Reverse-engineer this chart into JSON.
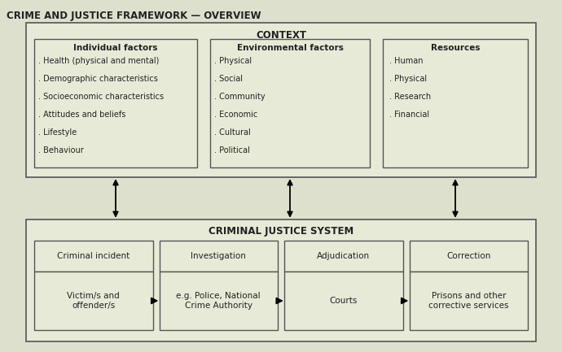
{
  "title": "CRIME AND JUSTICE FRAMEWORK — OVERVIEW",
  "bg_color": "#dde0cc",
  "box_fill": "#e8ead8",
  "box_edge": "#555555",
  "text_color": "#222222",
  "context_label": "CONTEXT",
  "cjs_label": "CRIMINAL JUSTICE SYSTEM",
  "individual_title": "Individual factors",
  "individual_items": [
    ". Health (physical and mental)",
    ". Demographic characteristics",
    ". Socioeconomic characteristics",
    ". Attitudes and beliefs",
    ". Lifestyle",
    ". Behaviour"
  ],
  "environmental_title": "Environmental factors",
  "environmental_items": [
    ". Physical",
    ". Social",
    ". Community",
    ". Economic",
    ". Cultural",
    ". Political"
  ],
  "resources_title": "Resources",
  "resources_items": [
    ". Human",
    ". Physical",
    ". Research",
    ". Financial"
  ],
  "cjs_top": [
    "Criminal incident",
    "Investigation",
    "Adjudication",
    "Correction"
  ],
  "cjs_bottom": [
    "Victim/s and\noffender/s",
    "e.g. Police, National\nCrime Authority",
    "Courts",
    "Prisons and other\ncorrective services"
  ]
}
